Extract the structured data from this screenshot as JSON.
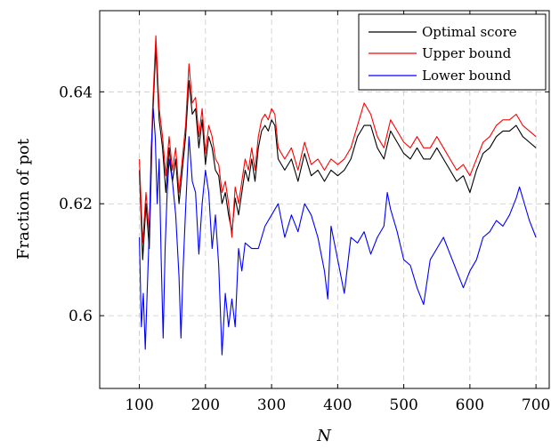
{
  "chart_data": {
    "type": "line",
    "xlabel": "N",
    "ylabel": "Fraction of pot",
    "xlim": [
      40,
      720
    ],
    "ylim": [
      0.587,
      0.6545
    ],
    "x_ticks": [
      100,
      200,
      300,
      400,
      500,
      600,
      700
    ],
    "x_tick_labels": [
      "100",
      "200",
      "300",
      "400",
      "500",
      "600",
      "700"
    ],
    "y_ticks": [
      0.6,
      0.62,
      0.64
    ],
    "y_tick_labels": [
      "0.6",
      "0.62",
      "0.64"
    ],
    "grid": true,
    "legend_position": "top-right",
    "series": [
      {
        "name": "Optimal score",
        "color": "#000000",
        "x": [
          100,
          105,
          110,
          115,
          120,
          125,
          130,
          135,
          140,
          145,
          150,
          155,
          160,
          165,
          170,
          175,
          180,
          185,
          190,
          195,
          200,
          205,
          210,
          215,
          220,
          225,
          230,
          235,
          240,
          245,
          250,
          255,
          260,
          265,
          270,
          275,
          280,
          285,
          290,
          295,
          300,
          305,
          310,
          320,
          330,
          340,
          350,
          360,
          370,
          380,
          390,
          400,
          410,
          420,
          430,
          440,
          450,
          460,
          470,
          480,
          490,
          500,
          510,
          520,
          530,
          540,
          550,
          560,
          570,
          580,
          590,
          600,
          610,
          620,
          630,
          640,
          650,
          660,
          670,
          680,
          690,
          700
        ],
        "values": [
          0.626,
          0.61,
          0.62,
          0.612,
          0.635,
          0.648,
          0.635,
          0.63,
          0.622,
          0.63,
          0.624,
          0.628,
          0.62,
          0.626,
          0.632,
          0.642,
          0.636,
          0.637,
          0.63,
          0.635,
          0.627,
          0.632,
          0.63,
          0.626,
          0.625,
          0.62,
          0.622,
          0.618,
          0.615,
          0.621,
          0.618,
          0.622,
          0.626,
          0.624,
          0.628,
          0.624,
          0.63,
          0.633,
          0.634,
          0.633,
          0.635,
          0.634,
          0.628,
          0.626,
          0.628,
          0.624,
          0.629,
          0.625,
          0.626,
          0.624,
          0.626,
          0.625,
          0.626,
          0.628,
          0.632,
          0.634,
          0.634,
          0.63,
          0.628,
          0.633,
          0.631,
          0.629,
          0.628,
          0.63,
          0.628,
          0.628,
          0.63,
          0.628,
          0.626,
          0.624,
          0.625,
          0.622,
          0.626,
          0.629,
          0.63,
          0.632,
          0.633,
          0.633,
          0.634,
          0.632,
          0.631,
          0.63
        ]
      },
      {
        "name": "Upper bound",
        "color": "#ff0000",
        "x": [
          100,
          105,
          110,
          115,
          120,
          125,
          130,
          135,
          140,
          145,
          150,
          155,
          160,
          165,
          170,
          175,
          180,
          185,
          190,
          195,
          200,
          205,
          210,
          215,
          220,
          225,
          230,
          235,
          240,
          245,
          250,
          255,
          260,
          265,
          270,
          275,
          280,
          285,
          290,
          295,
          300,
          305,
          310,
          320,
          330,
          340,
          350,
          360,
          370,
          380,
          390,
          400,
          410,
          420,
          430,
          440,
          450,
          460,
          470,
          480,
          490,
          500,
          510,
          520,
          530,
          540,
          550,
          560,
          570,
          580,
          590,
          600,
          610,
          620,
          630,
          640,
          650,
          660,
          670,
          680,
          690,
          700
        ],
        "values": [
          0.628,
          0.613,
          0.622,
          0.615,
          0.637,
          0.65,
          0.637,
          0.632,
          0.625,
          0.632,
          0.626,
          0.63,
          0.622,
          0.628,
          0.634,
          0.645,
          0.638,
          0.639,
          0.632,
          0.637,
          0.629,
          0.634,
          0.632,
          0.628,
          0.627,
          0.622,
          0.624,
          0.62,
          0.614,
          0.623,
          0.62,
          0.624,
          0.628,
          0.626,
          0.63,
          0.626,
          0.632,
          0.635,
          0.636,
          0.635,
          0.637,
          0.636,
          0.63,
          0.628,
          0.63,
          0.626,
          0.631,
          0.627,
          0.628,
          0.626,
          0.628,
          0.627,
          0.628,
          0.63,
          0.634,
          0.638,
          0.636,
          0.632,
          0.63,
          0.635,
          0.633,
          0.631,
          0.63,
          0.632,
          0.63,
          0.63,
          0.632,
          0.63,
          0.628,
          0.626,
          0.627,
          0.625,
          0.628,
          0.631,
          0.632,
          0.634,
          0.635,
          0.635,
          0.636,
          0.634,
          0.633,
          0.632
        ]
      },
      {
        "name": "Lower bound",
        "color": "#0000ff",
        "x": [
          100,
          103,
          106,
          109,
          112,
          115,
          118,
          121,
          124,
          127,
          130,
          133,
          136,
          139,
          142,
          145,
          150,
          155,
          160,
          163,
          166,
          170,
          175,
          180,
          185,
          190,
          195,
          200,
          205,
          210,
          215,
          220,
          225,
          230,
          235,
          240,
          245,
          250,
          255,
          260,
          270,
          280,
          290,
          300,
          310,
          320,
          330,
          340,
          350,
          360,
          370,
          380,
          385,
          390,
          400,
          410,
          420,
          430,
          440,
          450,
          460,
          470,
          475,
          480,
          490,
          500,
          510,
          520,
          530,
          535,
          540,
          550,
          560,
          570,
          580,
          590,
          600,
          610,
          620,
          630,
          640,
          650,
          660,
          670,
          675,
          680,
          690,
          700
        ],
        "values": [
          0.614,
          0.598,
          0.604,
          0.594,
          0.605,
          0.615,
          0.63,
          0.637,
          0.632,
          0.62,
          0.628,
          0.61,
          0.596,
          0.612,
          0.622,
          0.628,
          0.624,
          0.618,
          0.607,
          0.596,
          0.608,
          0.619,
          0.632,
          0.624,
          0.622,
          0.611,
          0.62,
          0.626,
          0.622,
          0.612,
          0.618,
          0.609,
          0.593,
          0.604,
          0.598,
          0.603,
          0.598,
          0.612,
          0.608,
          0.613,
          0.612,
          0.612,
          0.616,
          0.618,
          0.62,
          0.614,
          0.618,
          0.615,
          0.62,
          0.618,
          0.614,
          0.608,
          0.603,
          0.616,
          0.61,
          0.604,
          0.614,
          0.613,
          0.615,
          0.611,
          0.614,
          0.616,
          0.622,
          0.619,
          0.615,
          0.61,
          0.609,
          0.605,
          0.602,
          0.606,
          0.61,
          0.612,
          0.614,
          0.611,
          0.608,
          0.605,
          0.608,
          0.61,
          0.614,
          0.615,
          0.617,
          0.616,
          0.618,
          0.621,
          0.623,
          0.621,
          0.617,
          0.614
        ]
      }
    ]
  }
}
